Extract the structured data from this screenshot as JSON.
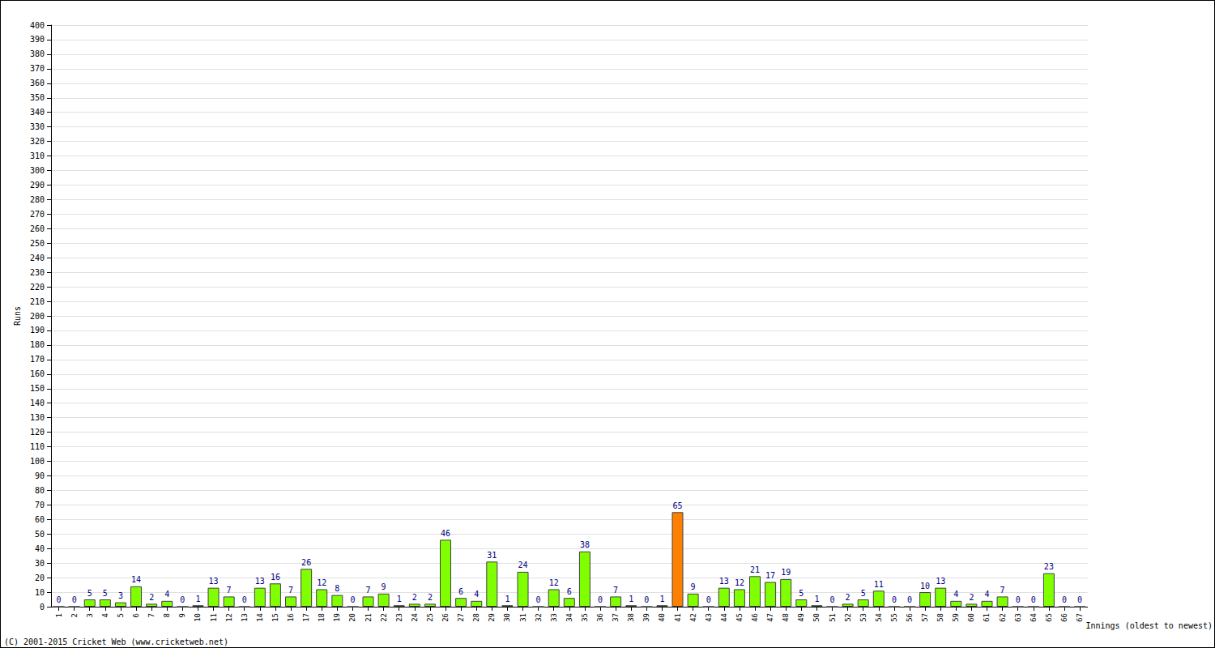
{
  "chart_data": {
    "type": "bar",
    "y_label": "Runs",
    "x_label": "Innings (oldest to newest)",
    "annotations": [
      "(C) 2001-2015 Cricket Web (www.cricketweb.net)"
    ],
    "categories": [
      "1",
      "2",
      "3",
      "4",
      "5",
      "6",
      "7",
      "8",
      "9",
      "10",
      "11",
      "12",
      "13",
      "14",
      "15",
      "16",
      "17",
      "18",
      "19",
      "20",
      "21",
      "22",
      "23",
      "24",
      "25",
      "26",
      "27",
      "28",
      "29",
      "30",
      "31",
      "32",
      "33",
      "34",
      "35",
      "36",
      "37",
      "38",
      "39",
      "40",
      "41",
      "42",
      "43",
      "44",
      "45",
      "46",
      "47",
      "48",
      "49",
      "50",
      "51",
      "52",
      "53",
      "54",
      "55",
      "56",
      "57",
      "58",
      "59",
      "60",
      "61",
      "62",
      "63",
      "64",
      "65",
      "66",
      "67"
    ],
    "values": [
      0,
      0,
      5,
      5,
      3,
      14,
      2,
      4,
      0,
      1,
      13,
      7,
      0,
      13,
      16,
      7,
      26,
      12,
      8,
      0,
      7,
      9,
      1,
      2,
      2,
      46,
      6,
      4,
      31,
      1,
      24,
      0,
      12,
      6,
      38,
      0,
      7,
      1,
      0,
      1,
      65,
      9,
      0,
      13,
      12,
      21,
      17,
      19,
      5,
      1,
      0,
      2,
      5,
      11,
      0,
      0,
      10,
      13,
      4,
      2,
      4,
      7,
      0,
      0,
      23,
      0,
      0
    ],
    "colors": [
      "#80ff00",
      "#80ff00",
      "#80ff00",
      "#80ff00",
      "#80ff00",
      "#80ff00",
      "#80ff00",
      "#80ff00",
      "#80ff00",
      "#80ff00",
      "#80ff00",
      "#80ff00",
      "#80ff00",
      "#80ff00",
      "#80ff00",
      "#80ff00",
      "#80ff00",
      "#80ff00",
      "#80ff00",
      "#80ff00",
      "#80ff00",
      "#80ff00",
      "#80ff00",
      "#80ff00",
      "#80ff00",
      "#80ff00",
      "#80ff00",
      "#80ff00",
      "#80ff00",
      "#80ff00",
      "#80ff00",
      "#80ff00",
      "#80ff00",
      "#80ff00",
      "#80ff00",
      "#80ff00",
      "#80ff00",
      "#80ff00",
      "#80ff00",
      "#80ff00",
      "#ff8000",
      "#80ff00",
      "#80ff00",
      "#80ff00",
      "#80ff00",
      "#80ff00",
      "#80ff00",
      "#80ff00",
      "#80ff00",
      "#80ff00",
      "#80ff00",
      "#80ff00",
      "#80ff00",
      "#80ff00",
      "#80ff00",
      "#80ff00",
      "#80ff00",
      "#80ff00",
      "#80ff00",
      "#80ff00",
      "#80ff00",
      "#80ff00",
      "#80ff00",
      "#80ff00",
      "#80ff00",
      "#80ff00",
      "#80ff00"
    ],
    "ylim": [
      0,
      400
    ],
    "yticks": [
      0,
      10,
      20,
      30,
      40,
      50,
      60,
      70,
      80,
      90,
      100,
      110,
      120,
      130,
      140,
      150,
      160,
      170,
      180,
      190,
      200,
      210,
      220,
      230,
      240,
      250,
      260,
      270,
      280,
      290,
      300,
      310,
      320,
      330,
      340,
      350,
      360,
      370,
      380,
      390,
      400
    ],
    "grid": true,
    "data_labels": true
  }
}
